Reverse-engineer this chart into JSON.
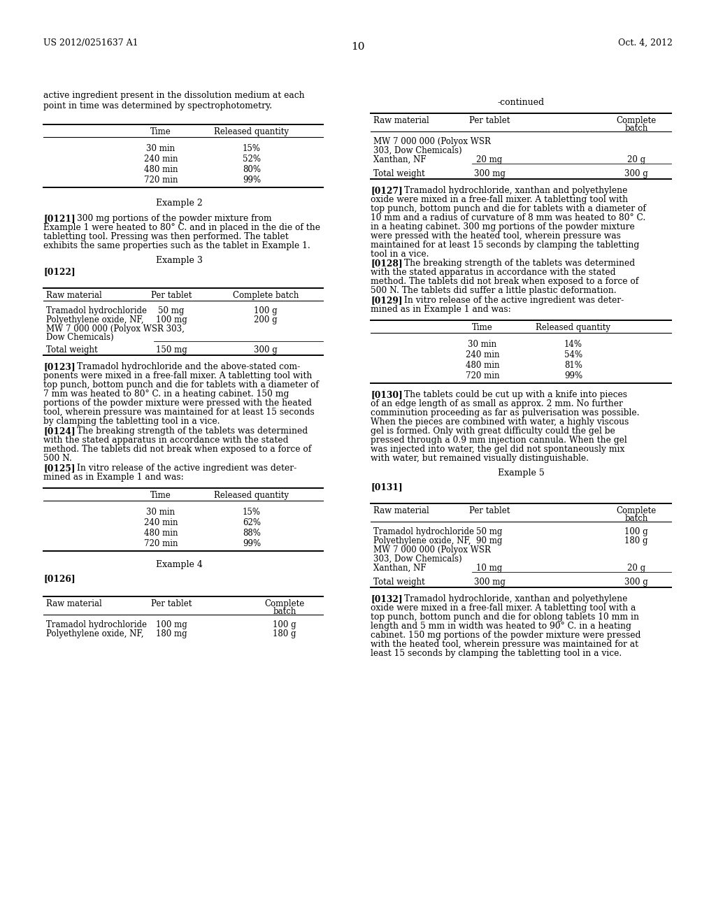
{
  "bg": "#ffffff",
  "header_left": "US 2012/0251637 A1",
  "header_right": "Oct. 4, 2012",
  "page_num": "10"
}
